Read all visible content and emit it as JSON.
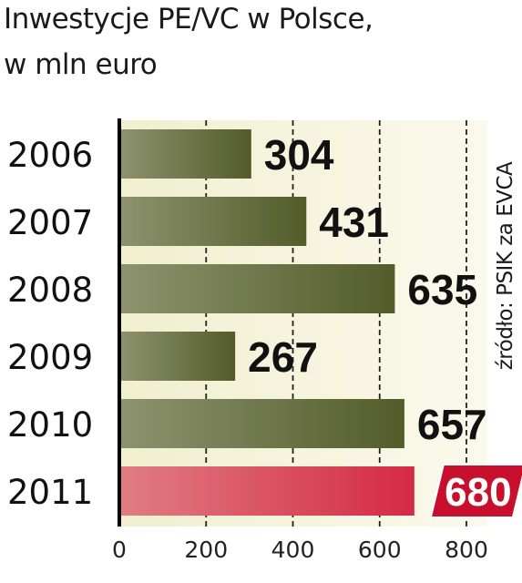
{
  "chart_data": {
    "type": "bar",
    "orientation": "horizontal",
    "title": "Inwestycje PE/VC w Polsce,",
    "subtitle": "w mln euro",
    "source": "źródło: PSIK za EVCA",
    "categories": [
      "2006",
      "2007",
      "2008",
      "2009",
      "2010",
      "2011"
    ],
    "values": [
      304,
      431,
      635,
      267,
      657,
      680
    ],
    "value_labels": [
      "304",
      "431",
      "635",
      "267",
      "657",
      "680"
    ],
    "highlight_index": 5,
    "xlim": [
      0,
      800
    ],
    "xticks": [
      "0",
      "200",
      "400",
      "600",
      "800"
    ],
    "grid": "dashed vertical",
    "colors": {
      "bar_dark": "#535c29",
      "bar_light": "#8d9370",
      "highlight_dark": "#d42a45",
      "highlight_light": "#e07d82",
      "highlight_label_bg": "#c8102e",
      "panel_light": "#fbf9ec",
      "panel_mid": "#f1efcf"
    }
  }
}
